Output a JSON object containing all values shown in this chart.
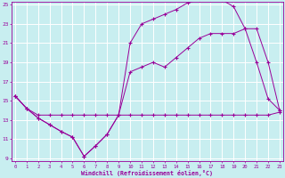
{
  "xlabel": "Windchill (Refroidissement éolien,°C)",
  "bg_color": "#c8eef0",
  "line_color": "#990099",
  "grid_color": "#ffffff",
  "xmin": 0,
  "xmax": 23,
  "ymin": 9,
  "ymax": 25,
  "yticks": [
    9,
    11,
    13,
    15,
    17,
    19,
    21,
    23,
    25
  ],
  "series1_x": [
    0,
    1,
    2,
    3,
    4,
    5,
    6,
    7,
    8,
    9,
    10,
    11,
    12,
    13,
    14,
    15,
    16,
    17,
    18,
    19,
    20,
    21,
    22,
    23
  ],
  "series1_y": [
    15.5,
    14.2,
    13.2,
    12.5,
    11.8,
    11.2,
    9.2,
    10.3,
    11.5,
    13.5,
    21.0,
    23.0,
    23.5,
    24.0,
    24.5,
    25.2,
    25.5,
    25.5,
    25.5,
    24.8,
    22.5,
    19.0,
    15.2,
    14.0
  ],
  "series2_x": [
    0,
    1,
    2,
    3,
    4,
    5,
    6,
    7,
    8,
    9,
    10,
    11,
    12,
    13,
    14,
    15,
    16,
    17,
    18,
    19,
    20,
    21,
    22,
    23
  ],
  "series2_y": [
    15.5,
    14.2,
    13.2,
    12.5,
    11.8,
    11.2,
    9.2,
    10.3,
    11.5,
    13.5,
    18.0,
    18.5,
    19.0,
    18.5,
    19.5,
    20.5,
    21.5,
    22.0,
    22.0,
    22.0,
    22.5,
    22.5,
    19.0,
    14.0
  ],
  "series3_x": [
    0,
    1,
    2,
    3,
    4,
    5,
    6,
    7,
    8,
    9,
    10,
    11,
    12,
    13,
    14,
    15,
    16,
    17,
    18,
    19,
    20,
    21,
    22,
    23
  ],
  "series3_y": [
    15.5,
    14.2,
    13.5,
    13.5,
    13.5,
    13.5,
    13.5,
    13.5,
    13.5,
    13.5,
    13.5,
    13.5,
    13.5,
    13.5,
    13.5,
    13.5,
    13.5,
    13.5,
    13.5,
    13.5,
    13.5,
    13.5,
    13.5,
    13.8
  ]
}
